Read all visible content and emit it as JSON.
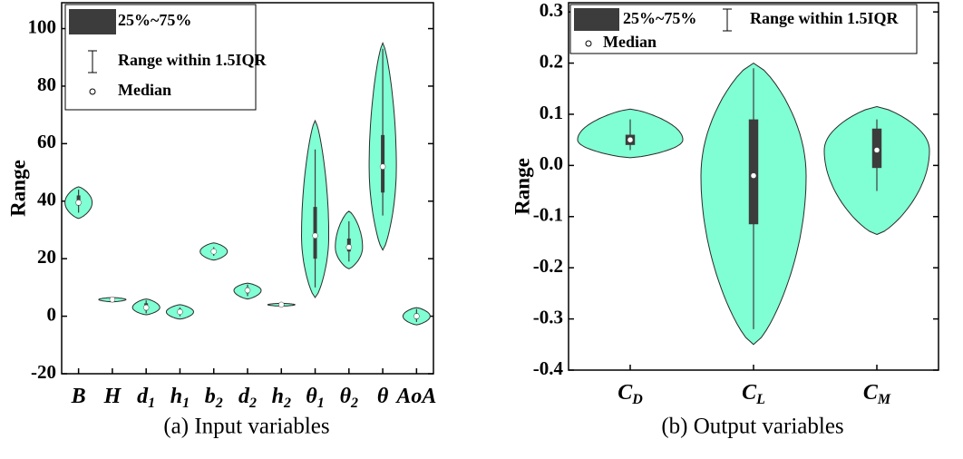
{
  "chart_data": [
    {
      "type": "violin",
      "ylabel": "Range",
      "caption": "(a) Input variables",
      "categories": [
        {
          "base": "B"
        },
        {
          "base": "H"
        },
        {
          "base": "d",
          "sub": "1"
        },
        {
          "base": "h",
          "sub": "1"
        },
        {
          "base": "b",
          "sub": "2"
        },
        {
          "base": "d",
          "sub": "2"
        },
        {
          "base": "h",
          "sub": "2"
        },
        {
          "base": "θ",
          "sub": "1"
        },
        {
          "base": "θ",
          "sub": "2"
        },
        {
          "base": "θ"
        },
        {
          "base": "AoA"
        }
      ],
      "min": [
        34,
        5,
        0.5,
        -1,
        19.5,
        6,
        3.5,
        6.5,
        16.5,
        23,
        -3
      ],
      "max": [
        45,
        6.5,
        6,
        4,
        25.5,
        11.5,
        4.5,
        68,
        36.5,
        95,
        3
      ],
      "whisker_low": [
        36,
        5.2,
        1,
        0,
        21,
        7,
        3.6,
        10,
        19,
        35,
        -2
      ],
      "whisker_high": [
        44,
        6.3,
        5.5,
        3,
        24,
        11,
        4.4,
        58,
        33,
        93,
        2.5
      ],
      "q1": [
        38.5,
        5.5,
        2,
        1,
        22,
        8,
        3.8,
        20,
        22.5,
        43,
        -1
      ],
      "q3": [
        42,
        6,
        4.5,
        2.5,
        23,
        10,
        4.2,
        38,
        27,
        63,
        1
      ],
      "median": [
        39.5,
        5.8,
        3,
        1.5,
        22.5,
        9,
        4,
        28,
        24,
        52,
        0
      ],
      "color": "#80ffd4",
      "box_color": "#3c3c3c",
      "ylim": [
        -20,
        109
      ],
      "yticks": [
        -20,
        0,
        20,
        40,
        60,
        80,
        100
      ],
      "legend": [
        "25%~75%",
        "Range within 1.5IQR",
        "Median"
      ],
      "legend_position": "upper left"
    },
    {
      "type": "violin",
      "ylabel": "Range",
      "caption": "(b) Output variables",
      "categories": [
        {
          "base": "C",
          "sub": "D"
        },
        {
          "base": "C",
          "sub": "L"
        },
        {
          "base": "C",
          "sub": "M"
        }
      ],
      "min": [
        0.015,
        -0.35,
        -0.135
      ],
      "max": [
        0.11,
        0.2,
        0.115
      ],
      "whisker_low": [
        0.03,
        -0.32,
        -0.05
      ],
      "whisker_high": [
        0.09,
        0.19,
        0.09
      ],
      "q1": [
        0.04,
        -0.115,
        -0.005
      ],
      "q3": [
        0.06,
        0.09,
        0.072
      ],
      "median": [
        0.05,
        -0.02,
        0.03
      ],
      "color": "#80ffd4",
      "box_color": "#3c3c3c",
      "ylim": [
        -0.4,
        0.318
      ],
      "yticks": [
        -0.4,
        -0.3,
        -0.2,
        -0.1,
        {
          "value": 0,
          "label": "0.0"
        },
        0.1,
        0.2,
        0.3
      ],
      "legend": [
        "25%~75%",
        "Range within 1.5IQR",
        "Median"
      ],
      "legend_position": "upper left"
    }
  ]
}
